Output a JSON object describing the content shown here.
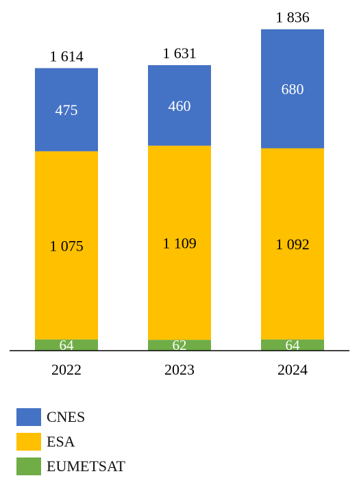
{
  "colors": {
    "CNES": "#4472C4",
    "ESA": "#FFC000",
    "EUMETSAT": "#70AD47",
    "axis": "#000000",
    "text_dark": "#000000",
    "text_light": "#ffffff"
  },
  "chart_data": {
    "type": "bar",
    "stacked": true,
    "title": "",
    "xlabel": "",
    "ylabel": "",
    "ylim": [
      0,
      1900
    ],
    "grid": false,
    "legend_position": "bottom-left",
    "categories": [
      "2022",
      "2023",
      "2024"
    ],
    "series": [
      {
        "name": "EUMETSAT",
        "color_key": "EUMETSAT",
        "values": [
          64,
          62,
          64
        ],
        "labels": [
          "64",
          "62",
          "64"
        ]
      },
      {
        "name": "ESA",
        "color_key": "ESA",
        "values": [
          1075,
          1109,
          1092
        ],
        "labels": [
          "1 075",
          "1 109",
          "1 092"
        ]
      },
      {
        "name": "CNES",
        "color_key": "CNES",
        "values": [
          475,
          460,
          680
        ],
        "labels": [
          "475",
          "460",
          "680"
        ]
      }
    ],
    "totals": [
      1614,
      1631,
      1836
    ],
    "total_labels": [
      "1 614",
      "1 631",
      "1 836"
    ]
  },
  "legend": {
    "items": [
      {
        "label": "CNES",
        "color_key": "CNES"
      },
      {
        "label": "ESA",
        "color_key": "ESA"
      },
      {
        "label": "EUMETSAT",
        "color_key": "EUMETSAT"
      }
    ]
  }
}
